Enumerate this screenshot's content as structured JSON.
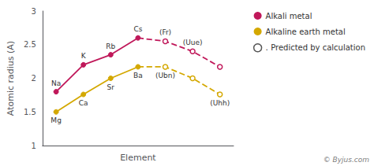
{
  "chart_data": {
    "type": "line",
    "xlabel": "Element",
    "ylabel": "Atomic radius (A)",
    "annotation": "© Byjus.com",
    "x": [
      1,
      2,
      3,
      4,
      5,
      6,
      7
    ],
    "xlim": [
      0.5,
      7.5
    ],
    "ylim": [
      1.0,
      3.0
    ],
    "yticks": [
      1,
      1.5,
      2,
      2.5,
      3
    ],
    "grid": false,
    "legend": "right",
    "tick_labels": "y",
    "series": [
      {
        "name": "Alkali metal",
        "color": "#c0185a",
        "line_style": "solid",
        "marker": "filled",
        "values": [
          1.8,
          2.2,
          2.35,
          2.6,
          null,
          null,
          null
        ],
        "labels": [
          "Na",
          "K",
          "Rb",
          "Cs",
          null,
          null,
          null
        ]
      },
      {
        "name": "Alkali metal",
        "color": "#c0185a",
        "line_style": "dashed",
        "marker": "open",
        "values": [
          null,
          null,
          null,
          2.6,
          2.55,
          2.4,
          2.17
        ],
        "labels": [
          null,
          null,
          null,
          null,
          "(Fr)",
          "(Uue)",
          null
        ]
      },
      {
        "name": "Alkaline earth metal",
        "color": "#d4a800",
        "line_style": "solid",
        "marker": "filled",
        "values": [
          1.5,
          1.76,
          2.0,
          2.17,
          null,
          null,
          null
        ],
        "labels": [
          "Mg",
          "Ca",
          "Sr",
          "Ba",
          null,
          null,
          null
        ]
      },
      {
        "name": "Alkaline earth metal",
        "color": "#d4a800",
        "line_style": "dashed",
        "marker": "open",
        "values": [
          null,
          null,
          null,
          2.17,
          2.17,
          2.0,
          1.76
        ],
        "labels": [
          null,
          null,
          null,
          null,
          "(Ubn)",
          null,
          "(Uhh)"
        ]
      },
      {
        "name": "․ Predicted by calculation",
        "color": "#555555",
        "line_style": "solid",
        "marker": "open",
        "values": [
          null,
          null,
          null,
          null,
          null,
          null,
          null
        ],
        "labels": [
          null,
          null,
          null,
          null,
          null,
          null,
          null
        ]
      }
    ]
  }
}
